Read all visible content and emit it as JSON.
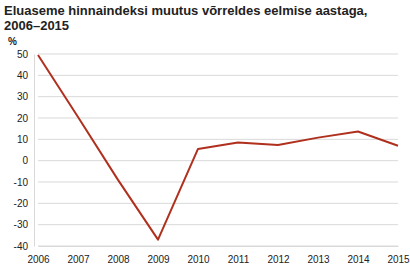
{
  "chart_data": {
    "type": "line",
    "title": "Eluaseme hinnaindeksi muutus võrreldes eelmise aastaga, 2006–2015",
    "y_label": "%",
    "categories": [
      "2006",
      "2007",
      "2008",
      "2009",
      "2010",
      "2011",
      "2012",
      "2013",
      "2014",
      "2015"
    ],
    "values": [
      49.5,
      20.5,
      -9,
      -37,
      5.5,
      8.5,
      7.3,
      10.8,
      13.7,
      7.0
    ],
    "color": "#b0301e",
    "ylim": [
      -40,
      50
    ],
    "yticks": [
      -40,
      -30,
      -20,
      -10,
      0,
      10,
      20,
      30,
      40,
      50
    ],
    "grid": true
  }
}
